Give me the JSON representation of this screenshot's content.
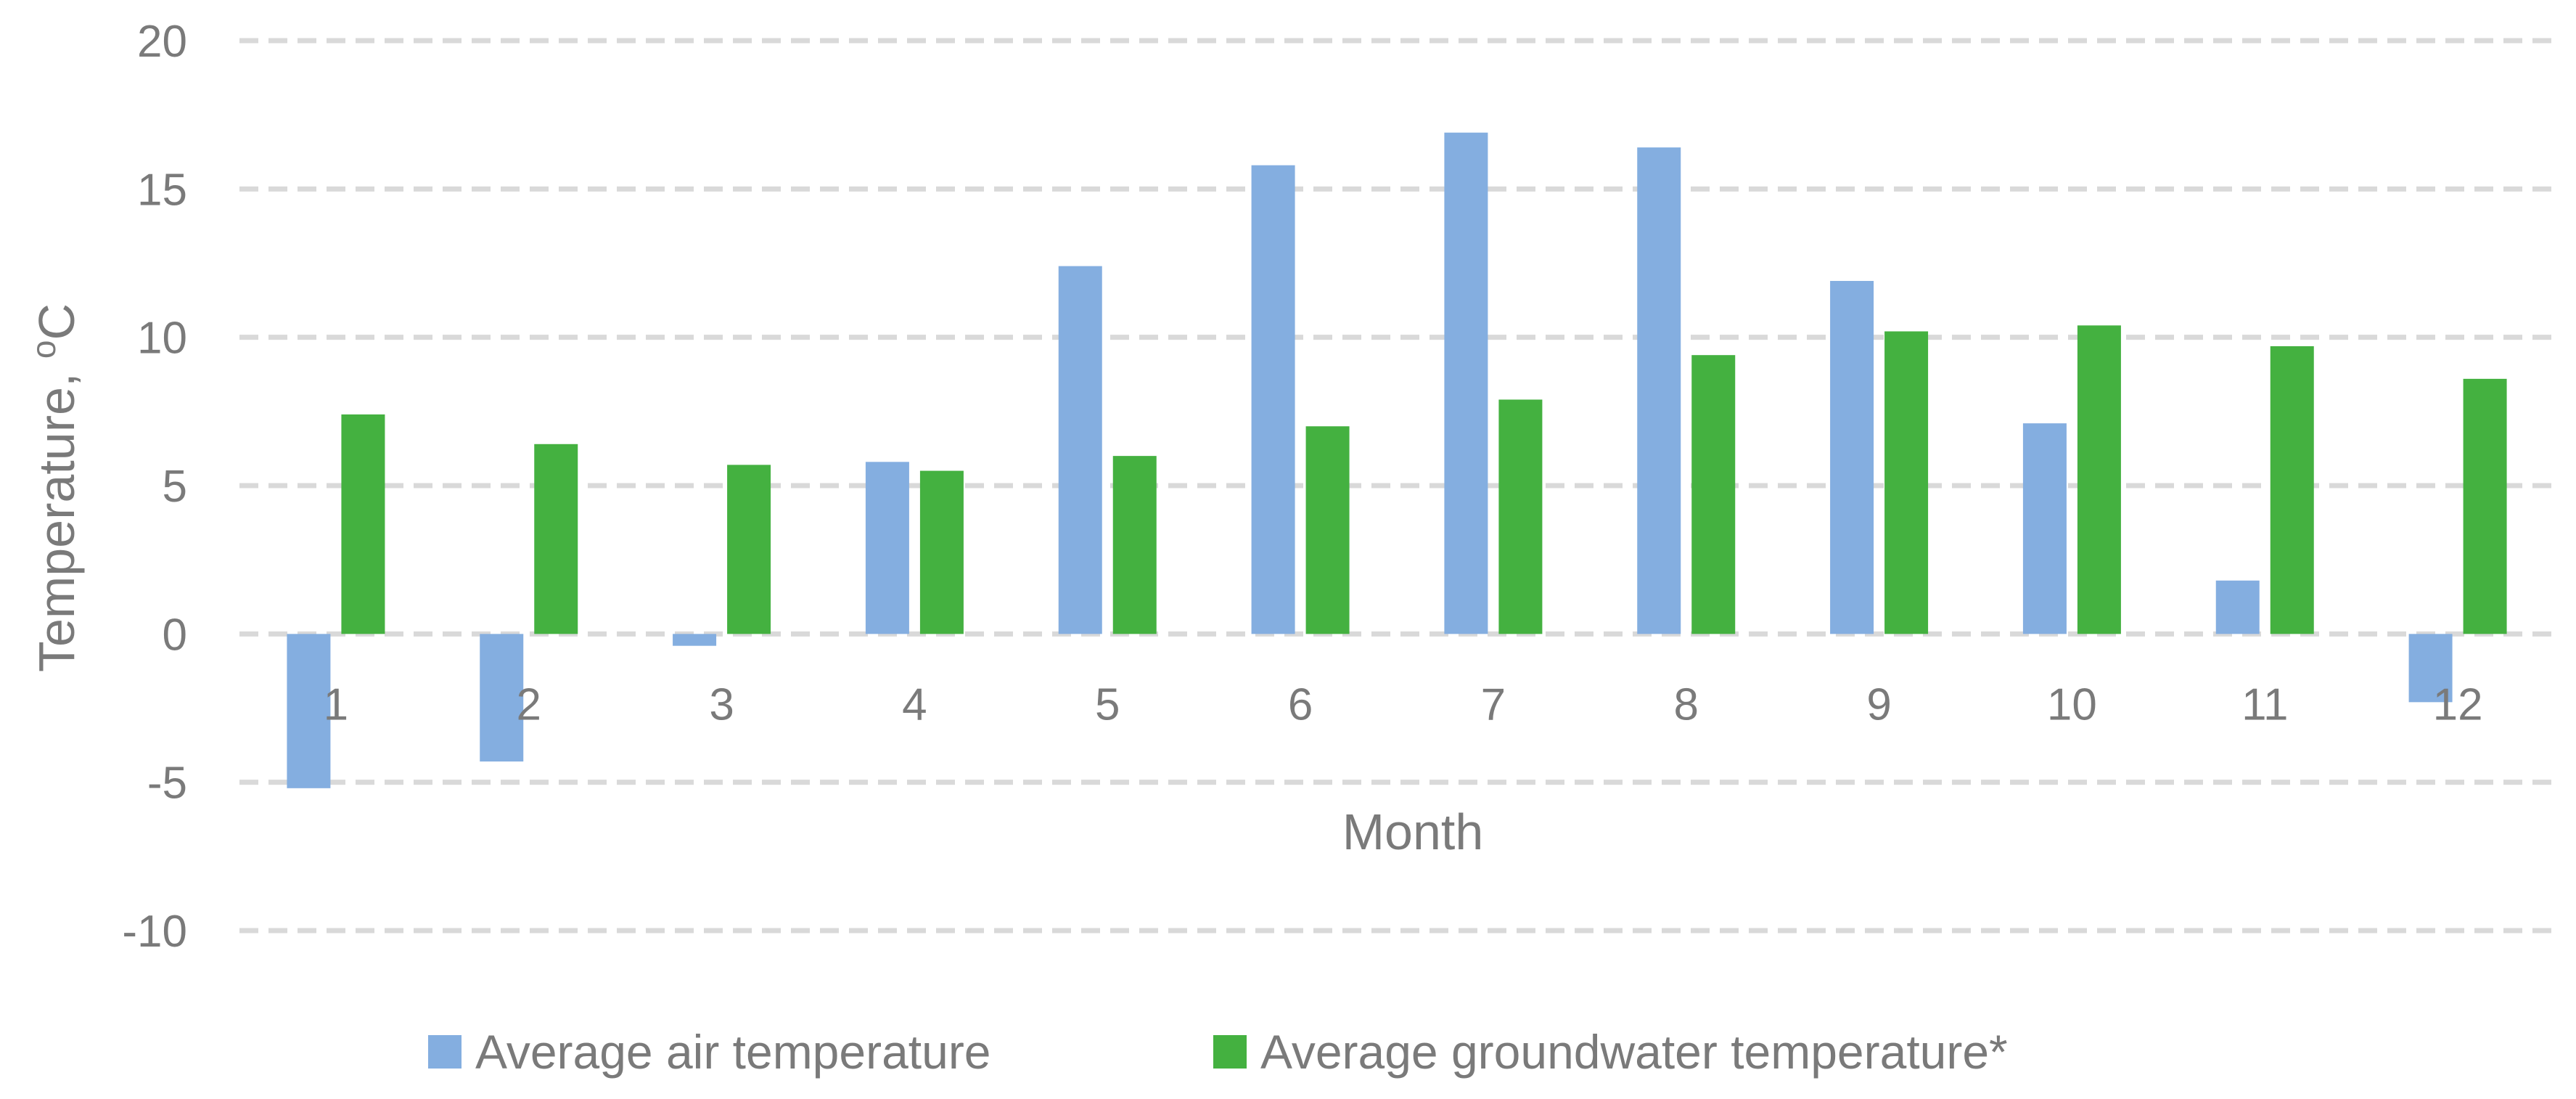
{
  "chart_data": {
    "type": "bar",
    "title": "",
    "xlabel": "Month",
    "ylabel": "Temperature, ",
    "ylabel_superscript": "o",
    "ylabel_unit": "C",
    "ylim": [
      -10,
      20
    ],
    "yticks": [
      -10,
      -5,
      0,
      5,
      10,
      15,
      20
    ],
    "ytick_labels": [
      "-10",
      "-5",
      "0",
      "5",
      "10",
      "15",
      "20"
    ],
    "grid": true,
    "legend_position": "bottom",
    "categories": [
      "1",
      "2",
      "3",
      "4",
      "5",
      "6",
      "7",
      "8",
      "9",
      "10",
      "11",
      "12"
    ],
    "series": [
      {
        "name": "Average air temperature",
        "color": "#84aee0",
        "values": [
          -5.2,
          -4.3,
          -0.4,
          5.8,
          12.4,
          15.8,
          16.9,
          16.4,
          11.9,
          7.1,
          1.8,
          -2.3
        ]
      },
      {
        "name": "Average groundwater temperature*",
        "color": "#44b140",
        "values": [
          7.4,
          6.4,
          5.7,
          5.5,
          6.0,
          7.0,
          7.9,
          9.4,
          10.2,
          10.4,
          9.7,
          8.6
        ]
      }
    ]
  }
}
